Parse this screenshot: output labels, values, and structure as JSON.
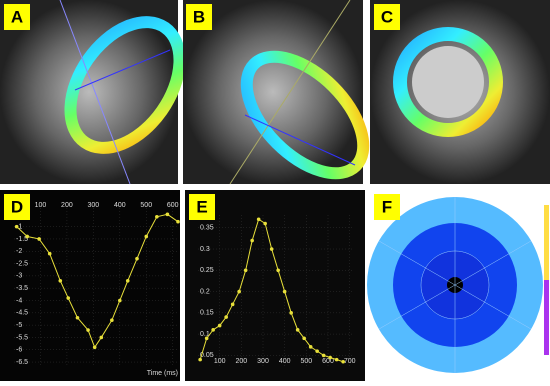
{
  "panels": [
    "A",
    "B",
    "C",
    "D",
    "E",
    "F"
  ],
  "chart_data": [
    {
      "type": "line",
      "x_label": "Time (ms)",
      "color": "#e8e03a",
      "x": [
        10,
        50,
        95,
        135,
        175,
        205,
        240,
        280,
        305,
        330,
        370,
        400,
        430,
        465,
        500,
        540,
        580,
        620
      ],
      "values": [
        -1.0,
        -1.4,
        -1.5,
        -2.1,
        -3.2,
        -3.9,
        -4.7,
        -5.2,
        -5.9,
        -5.5,
        -4.8,
        -4.0,
        -3.2,
        -2.3,
        -1.4,
        -0.6,
        -0.5,
        -0.8
      ],
      "xlim": [
        0,
        620
      ],
      "xticks": [
        100,
        200,
        300,
        400,
        500,
        600
      ],
      "ylim": [
        -6.7,
        0
      ],
      "yticks": [
        -1,
        -1.5,
        -2,
        -2.5,
        -3,
        -3.5,
        -4,
        -4.5,
        -5,
        -5.5,
        -6,
        -6.5
      ]
    },
    {
      "type": "line",
      "color": "#e8e03a",
      "x": [
        10,
        40,
        70,
        100,
        130,
        160,
        190,
        220,
        250,
        280,
        310,
        340,
        370,
        400,
        430,
        460,
        490,
        520,
        550,
        580,
        610,
        640,
        670
      ],
      "values": [
        0.04,
        0.09,
        0.11,
        0.12,
        0.14,
        0.17,
        0.2,
        0.25,
        0.32,
        0.37,
        0.36,
        0.3,
        0.25,
        0.2,
        0.15,
        0.11,
        0.09,
        0.07,
        0.06,
        0.05,
        0.045,
        0.04,
        0.035
      ],
      "xlim": [
        0,
        720
      ],
      "xticks": [
        100,
        200,
        300,
        400,
        500,
        600,
        700
      ],
      "ylim": [
        0.025,
        0.38
      ],
      "yticks": [
        0.05,
        0.1,
        0.15,
        0.2,
        0.25,
        0.3,
        0.35
      ]
    }
  ]
}
